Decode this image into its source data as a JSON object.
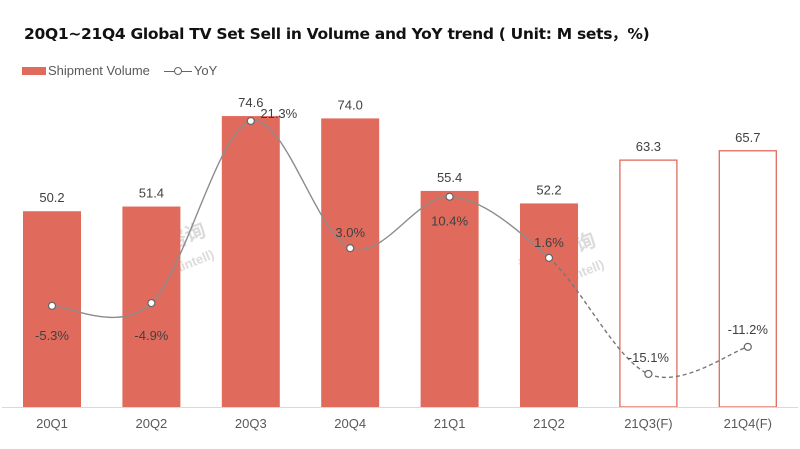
{
  "chart_data": {
    "type": "bar",
    "title": "20Q1~21Q4 Global TV Set Sell in Volume and YoY trend ( Unit: M sets，%)",
    "categories": [
      "20Q1",
      "20Q2",
      "20Q3",
      "20Q4",
      "21Q1",
      "21Q2",
      "21Q3(F)",
      "21Q4(F)"
    ],
    "series": [
      {
        "name": "Shipment Volume",
        "type": "bar",
        "values": [
          50.2,
          51.4,
          74.6,
          74.0,
          55.4,
          52.2,
          63.3,
          65.7
        ],
        "labels": [
          "50.2",
          "51.4",
          "74.6",
          "74.0",
          "55.4",
          "52.2",
          "63.3",
          "65.7"
        ],
        "forecast_from_index": 6
      },
      {
        "name": "YoY",
        "type": "line",
        "values": [
          -5.3,
          -4.9,
          21.3,
          3.0,
          10.4,
          1.6,
          -15.1,
          -11.2
        ],
        "labels": [
          "-5.3%",
          "-4.9%",
          "21.3%",
          "3.0%",
          "10.4%",
          "1.6%",
          "-15.1%",
          "-11.2%"
        ],
        "forecast_from_index": 6
      }
    ],
    "legend": [
      "Shipment Volume",
      "YoY"
    ],
    "legend_position": "top-left",
    "grid": false,
    "colors": {
      "bar": "#e06b5c",
      "line": "#7f7f7f"
    },
    "watermark": "群智咨询 (Sigmaintell)"
  }
}
